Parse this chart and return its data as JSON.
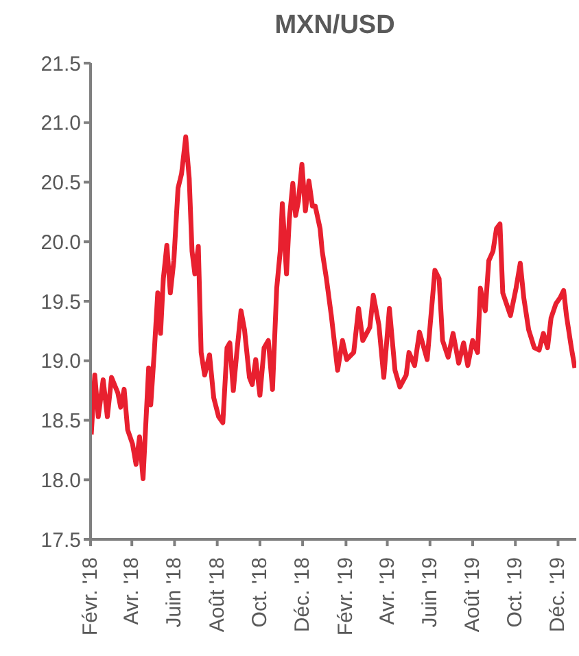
{
  "chart_data": {
    "type": "line",
    "title": "MXN/USD",
    "x": [
      "2018-02-02",
      "2018-02-07",
      "2018-02-12",
      "2018-02-19",
      "2018-02-25",
      "2018-03-03",
      "2018-03-12",
      "2018-03-16",
      "2018-03-21",
      "2018-03-26",
      "2018-04-02",
      "2018-04-07",
      "2018-04-12",
      "2018-04-17",
      "2018-04-25",
      "2018-04-28",
      "2018-05-03",
      "2018-05-08",
      "2018-05-12",
      "2018-05-16",
      "2018-05-21",
      "2018-05-26",
      "2018-05-31",
      "2018-06-06",
      "2018-06-11",
      "2018-06-17",
      "2018-06-22",
      "2018-06-26",
      "2018-06-30",
      "2018-07-05",
      "2018-07-09",
      "2018-07-14",
      "2018-07-21",
      "2018-07-27",
      "2018-08-03",
      "2018-08-09",
      "2018-08-15",
      "2018-08-19",
      "2018-08-24",
      "2018-08-29",
      "2018-09-04",
      "2018-09-09",
      "2018-09-16",
      "2018-09-20",
      "2018-09-25",
      "2018-10-01",
      "2018-10-07",
      "2018-10-13",
      "2018-10-19",
      "2018-10-25",
      "2018-10-30",
      "2018-11-02",
      "2018-11-08",
      "2018-11-12",
      "2018-11-17",
      "2018-11-21",
      "2018-11-25",
      "2018-11-30",
      "2018-12-05",
      "2018-12-10",
      "2018-12-15",
      "2018-12-19",
      "2018-12-26",
      "2018-12-29",
      "2019-01-04",
      "2019-01-11",
      "2019-01-20",
      "2019-01-27",
      "2019-02-02",
      "2019-02-12",
      "2019-02-19",
      "2019-02-25",
      "2019-03-07",
      "2019-03-12",
      "2019-03-20",
      "2019-03-27",
      "2019-04-04",
      "2019-04-12",
      "2019-04-19",
      "2019-04-28",
      "2019-05-02",
      "2019-05-10",
      "2019-05-17",
      "2019-05-28",
      "2019-06-08",
      "2019-06-14",
      "2019-06-19",
      "2019-06-27",
      "2019-07-04",
      "2019-07-12",
      "2019-07-19",
      "2019-07-25",
      "2019-08-01",
      "2019-08-08",
      "2019-08-12",
      "2019-08-19",
      "2019-08-24",
      "2019-08-30",
      "2019-09-04",
      "2019-09-09",
      "2019-09-13",
      "2019-09-24",
      "2019-10-02",
      "2019-10-08",
      "2019-10-13",
      "2019-10-20",
      "2019-10-28",
      "2019-11-04",
      "2019-11-10",
      "2019-11-16",
      "2019-11-21",
      "2019-11-28",
      "2019-12-04",
      "2019-12-09",
      "2019-12-13",
      "2019-12-20",
      "2019-12-25"
    ],
    "series": [
      {
        "color": "#e8202f",
        "values": [
          18.38,
          18.88,
          18.53,
          18.84,
          18.53,
          18.86,
          18.73,
          18.61,
          18.76,
          18.42,
          18.3,
          18.13,
          18.36,
          18.01,
          18.94,
          18.63,
          19.07,
          19.57,
          19.23,
          19.69,
          19.97,
          19.57,
          19.84,
          20.45,
          20.57,
          20.88,
          20.53,
          19.92,
          19.73,
          19.96,
          19.07,
          18.88,
          19.05,
          18.69,
          18.53,
          18.48,
          19.11,
          19.15,
          18.75,
          19.07,
          19.42,
          19.26,
          18.86,
          18.8,
          19.01,
          18.71,
          19.11,
          19.17,
          18.76,
          19.61,
          19.92,
          20.32,
          19.73,
          20.19,
          20.49,
          20.22,
          20.34,
          20.65,
          20.26,
          20.51,
          20.3,
          20.3,
          20.11,
          19.92,
          19.69,
          19.38,
          18.92,
          19.17,
          19.01,
          19.07,
          19.44,
          19.17,
          19.28,
          19.55,
          19.3,
          18.86,
          19.44,
          18.92,
          18.78,
          18.88,
          19.07,
          18.96,
          19.24,
          19.01,
          19.76,
          19.69,
          19.17,
          19.03,
          19.23,
          18.98,
          19.15,
          18.96,
          19.17,
          19.07,
          19.61,
          19.42,
          19.84,
          19.92,
          20.11,
          20.15,
          19.57,
          19.38,
          19.61,
          19.82,
          19.53,
          19.26,
          19.11,
          19.09,
          19.23,
          19.11,
          19.36,
          19.48,
          19.53,
          19.59,
          19.38,
          19.11,
          18.94
        ]
      }
    ],
    "xlim": [
      "2018-02-01",
      "2019-12-27"
    ],
    "xticks": [
      {
        "value": "2018-02-01",
        "label": "Févr. '18"
      },
      {
        "value": "2018-04-01",
        "label": "Avr. '18"
      },
      {
        "value": "2018-06-01",
        "label": "Juin '18"
      },
      {
        "value": "2018-08-01",
        "label": "Août '18"
      },
      {
        "value": "2018-10-01",
        "label": "Oct. '18"
      },
      {
        "value": "2018-12-01",
        "label": "Déc. '18"
      },
      {
        "value": "2019-02-01",
        "label": "Févr. '19"
      },
      {
        "value": "2019-04-01",
        "label": "Avr. '19"
      },
      {
        "value": "2019-06-01",
        "label": "Juin '19"
      },
      {
        "value": "2019-08-01",
        "label": "Août '19"
      },
      {
        "value": "2019-10-01",
        "label": "Oct. '19"
      },
      {
        "value": "2019-12-01",
        "label": "Déc. '19"
      }
    ],
    "ylim": [
      17.5,
      21.5
    ],
    "yticks": [
      {
        "value": 17.5,
        "label": "17.5"
      },
      {
        "value": 18,
        "label": "18.0"
      },
      {
        "value": 18.5,
        "label": "18.5"
      },
      {
        "value": 19,
        "label": "19.0"
      },
      {
        "value": 19.5,
        "label": "19.5"
      },
      {
        "value": 20,
        "label": "20.0"
      },
      {
        "value": 20.5,
        "label": "20.5"
      },
      {
        "value": 21,
        "label": "21.0"
      },
      {
        "value": 21.5,
        "label": "21.5"
      }
    ],
    "grid": false,
    "legend": false,
    "marker": "none",
    "line_style": "solid"
  }
}
